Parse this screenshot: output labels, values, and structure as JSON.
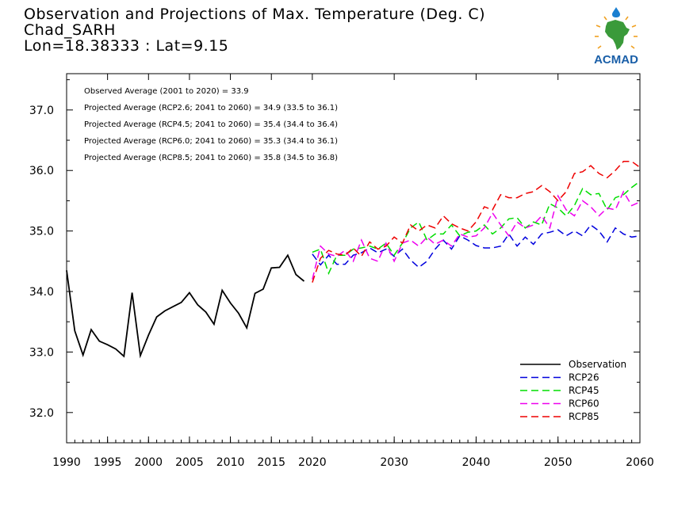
{
  "header": {
    "title": "Observation and Projections of Max. Temperature (Deg. C)",
    "station": "Chad_SARH",
    "coords": "Lon=18.38333 : Lat=9.15"
  },
  "logo": {
    "text": "ACMAD",
    "colors": {
      "text": "#1a5fa8",
      "africa": "#3a9a3a",
      "sun": "#f0a020",
      "drop": "#1a7fd0"
    }
  },
  "annotations": [
    "Observed Average (2001 to 2020) = 33.9",
    "Projected Average (RCP2.6; 2041 to 2060) = 34.9 (33.5 to 36.1)",
    "Projected Average (RCP4.5; 2041 to 2060) = 35.4 (34.4 to 36.4)",
    "Projected Average (RCP6.0; 2041 to 2060) = 35.3 (34.4 to 36.1)",
    "Projected Average (RCP8.5; 2041 to 2060) = 35.8 (34.5 to 36.8)"
  ],
  "chart_data": {
    "type": "line",
    "xlim": [
      1990,
      2060
    ],
    "ylim": [
      31.5,
      37.6
    ],
    "x_ticks": [
      1990,
      1995,
      2000,
      2005,
      2010,
      2015,
      2020,
      2030,
      2040,
      2050,
      2060
    ],
    "y_ticks": [
      32.0,
      33.0,
      34.0,
      35.0,
      36.0,
      37.0
    ],
    "y_tick_labels": [
      "32.0",
      "33.0",
      "34.0",
      "35.0",
      "36.0",
      "37.0"
    ],
    "legend_position": "bottom-right",
    "series": [
      {
        "name": "Observation",
        "color": "#000000",
        "style": "solid",
        "x": [
          1990,
          1991,
          1992,
          1993,
          1994,
          1995,
          1996,
          1997,
          1998,
          1999,
          2000,
          2001,
          2002,
          2003,
          2004,
          2005,
          2006,
          2007,
          2008,
          2009,
          2010,
          2011,
          2012,
          2013,
          2014,
          2015,
          2016,
          2017,
          2018,
          2019
        ],
        "y": [
          34.35,
          33.35,
          32.95,
          33.37,
          33.18,
          33.12,
          33.05,
          32.93,
          33.98,
          32.94,
          33.28,
          33.58,
          33.68,
          33.75,
          33.82,
          33.98,
          33.78,
          33.66,
          33.46,
          34.02,
          33.81,
          33.64,
          33.4,
          33.97,
          34.04,
          34.39,
          34.4,
          34.6,
          34.28,
          34.17
        ]
      },
      {
        "name": "RCP26",
        "color": "#0000dd",
        "style": "dashed",
        "x": [
          2020,
          2021,
          2022,
          2023,
          2024,
          2025,
          2026,
          2027,
          2028,
          2029,
          2030,
          2031,
          2032,
          2033,
          2034,
          2035,
          2036,
          2037,
          2038,
          2039,
          2040,
          2041,
          2042,
          2043,
          2044,
          2045,
          2046,
          2047,
          2048,
          2049,
          2050,
          2051,
          2052,
          2053,
          2054,
          2055,
          2056,
          2057,
          2058,
          2059,
          2060
        ],
        "y": [
          34.62,
          34.44,
          34.6,
          34.45,
          34.45,
          34.6,
          34.64,
          34.72,
          34.64,
          34.7,
          34.58,
          34.7,
          34.52,
          34.4,
          34.5,
          34.7,
          34.85,
          34.7,
          34.92,
          34.85,
          34.76,
          34.72,
          34.72,
          34.75,
          34.95,
          34.75,
          34.9,
          34.78,
          34.95,
          34.98,
          35.02,
          34.92,
          35.0,
          34.92,
          35.1,
          35.0,
          34.82,
          35.05,
          34.95,
          34.9,
          34.92
        ]
      },
      {
        "name": "RCP45",
        "color": "#00dd00",
        "style": "dashed",
        "x": [
          2020,
          2021,
          2022,
          2023,
          2024,
          2025,
          2026,
          2027,
          2028,
          2029,
          2030,
          2031,
          2032,
          2033,
          2034,
          2035,
          2036,
          2037,
          2038,
          2039,
          2040,
          2041,
          2042,
          2043,
          2044,
          2045,
          2046,
          2047,
          2048,
          2049,
          2050,
          2051,
          2052,
          2053,
          2054,
          2055,
          2056,
          2057,
          2058,
          2059,
          2060
        ],
        "y": [
          34.65,
          34.7,
          34.3,
          34.6,
          34.6,
          34.7,
          34.72,
          34.75,
          34.7,
          34.8,
          34.6,
          34.8,
          35.05,
          35.15,
          34.85,
          34.95,
          34.95,
          35.1,
          34.92,
          34.98,
          35.0,
          35.1,
          34.95,
          35.05,
          35.2,
          35.22,
          35.05,
          35.15,
          35.1,
          35.45,
          35.38,
          35.25,
          35.42,
          35.7,
          35.6,
          35.62,
          35.35,
          35.55,
          35.6,
          35.72,
          35.82
        ]
      },
      {
        "name": "RCP60",
        "color": "#ee00ee",
        "style": "dashed",
        "x": [
          2020,
          2021,
          2022,
          2023,
          2024,
          2025,
          2026,
          2027,
          2028,
          2029,
          2030,
          2031,
          2032,
          2033,
          2034,
          2035,
          2036,
          2037,
          2038,
          2039,
          2040,
          2041,
          2042,
          2043,
          2044,
          2045,
          2046,
          2047,
          2048,
          2049,
          2050,
          2051,
          2052,
          2053,
          2054,
          2055,
          2056,
          2057,
          2058,
          2059,
          2060
        ],
        "y": [
          34.2,
          34.75,
          34.62,
          34.58,
          34.68,
          34.5,
          34.85,
          34.55,
          34.5,
          34.8,
          34.5,
          34.8,
          34.85,
          34.75,
          34.9,
          34.78,
          34.85,
          34.75,
          34.95,
          34.9,
          34.92,
          35.05,
          35.3,
          35.1,
          34.92,
          35.15,
          35.05,
          35.1,
          35.25,
          35.05,
          35.58,
          35.35,
          35.25,
          35.5,
          35.4,
          35.25,
          35.38,
          35.35,
          35.65,
          35.42,
          35.48
        ]
      },
      {
        "name": "RCP85",
        "color": "#ee0000",
        "style": "dashed",
        "x": [
          2020,
          2021,
          2022,
          2023,
          2024,
          2025,
          2026,
          2027,
          2028,
          2029,
          2030,
          2031,
          2032,
          2033,
          2034,
          2035,
          2036,
          2037,
          2038,
          2039,
          2040,
          2041,
          2042,
          2043,
          2044,
          2045,
          2046,
          2047,
          2048,
          2049,
          2050,
          2051,
          2052,
          2053,
          2054,
          2055,
          2056,
          2057,
          2058,
          2059,
          2060
        ],
        "y": [
          34.15,
          34.55,
          34.68,
          34.62,
          34.6,
          34.72,
          34.58,
          34.82,
          34.7,
          34.75,
          34.9,
          34.8,
          35.1,
          35.0,
          35.1,
          35.05,
          35.25,
          35.12,
          35.05,
          35.0,
          35.15,
          35.4,
          35.35,
          35.6,
          35.55,
          35.55,
          35.62,
          35.65,
          35.75,
          35.65,
          35.5,
          35.65,
          35.95,
          35.98,
          36.08,
          35.95,
          35.88,
          36.0,
          36.15,
          36.15,
          36.05
        ]
      }
    ]
  }
}
